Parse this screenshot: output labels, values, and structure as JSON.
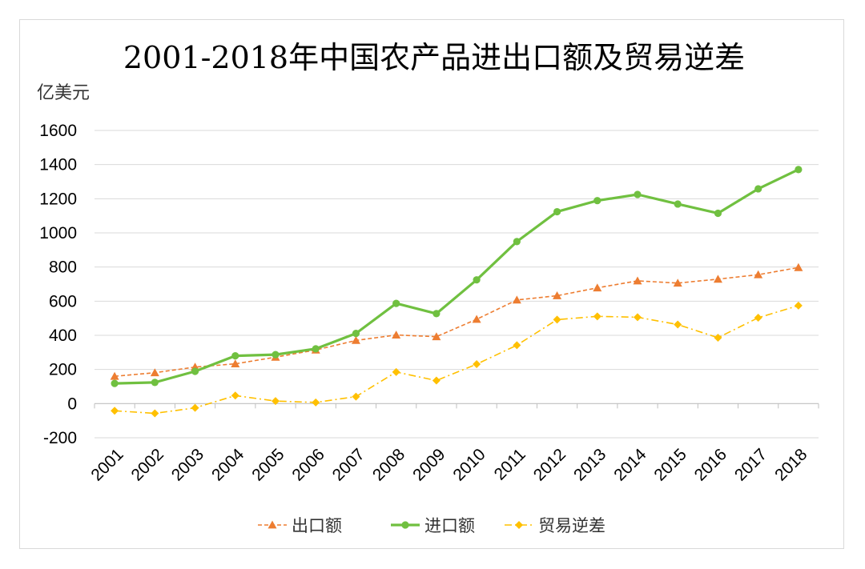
{
  "chart_data": {
    "type": "line",
    "title": "2001-2018年中国农产品进出口额及贸易逆差",
    "ylabel": "亿美元",
    "xlabel": "",
    "ylim": [
      -200,
      1600
    ],
    "yticks": [
      "1600",
      "1400",
      "1200",
      "1000",
      "800",
      "600",
      "400",
      "200",
      "0",
      "-200"
    ],
    "grid": true,
    "legend_position": "bottom",
    "categories": [
      "2001",
      "2002",
      "2003",
      "2004",
      "2005",
      "2006",
      "2007",
      "2008",
      "2009",
      "2010",
      "2011",
      "2012",
      "2013",
      "2014",
      "2015",
      "2016",
      "2017",
      "2018"
    ],
    "series": [
      {
        "name": "出口额",
        "color": "#ed7d31",
        "marker": "triangle",
        "line_style": "dashed",
        "values": [
          160,
          181,
          214,
          233,
          272,
          314,
          370,
          402,
          392,
          494,
          607,
          632,
          678,
          719,
          706,
          729,
          755,
          797
        ]
      },
      {
        "name": "进口额",
        "color": "#70c040",
        "marker": "circle",
        "line_style": "solid",
        "values": [
          118,
          124,
          189,
          280,
          287,
          321,
          411,
          587,
          527,
          725,
          949,
          1124,
          1189,
          1225,
          1169,
          1115,
          1258,
          1371
        ]
      },
      {
        "name": "贸易逆差",
        "color": "#ffc000",
        "marker": "diamond",
        "line_style": "dashdot",
        "values": [
          -42,
          -57,
          -25,
          47,
          15,
          7,
          41,
          185,
          135,
          231,
          342,
          492,
          511,
          506,
          463,
          386,
          503,
          574
        ]
      }
    ]
  }
}
